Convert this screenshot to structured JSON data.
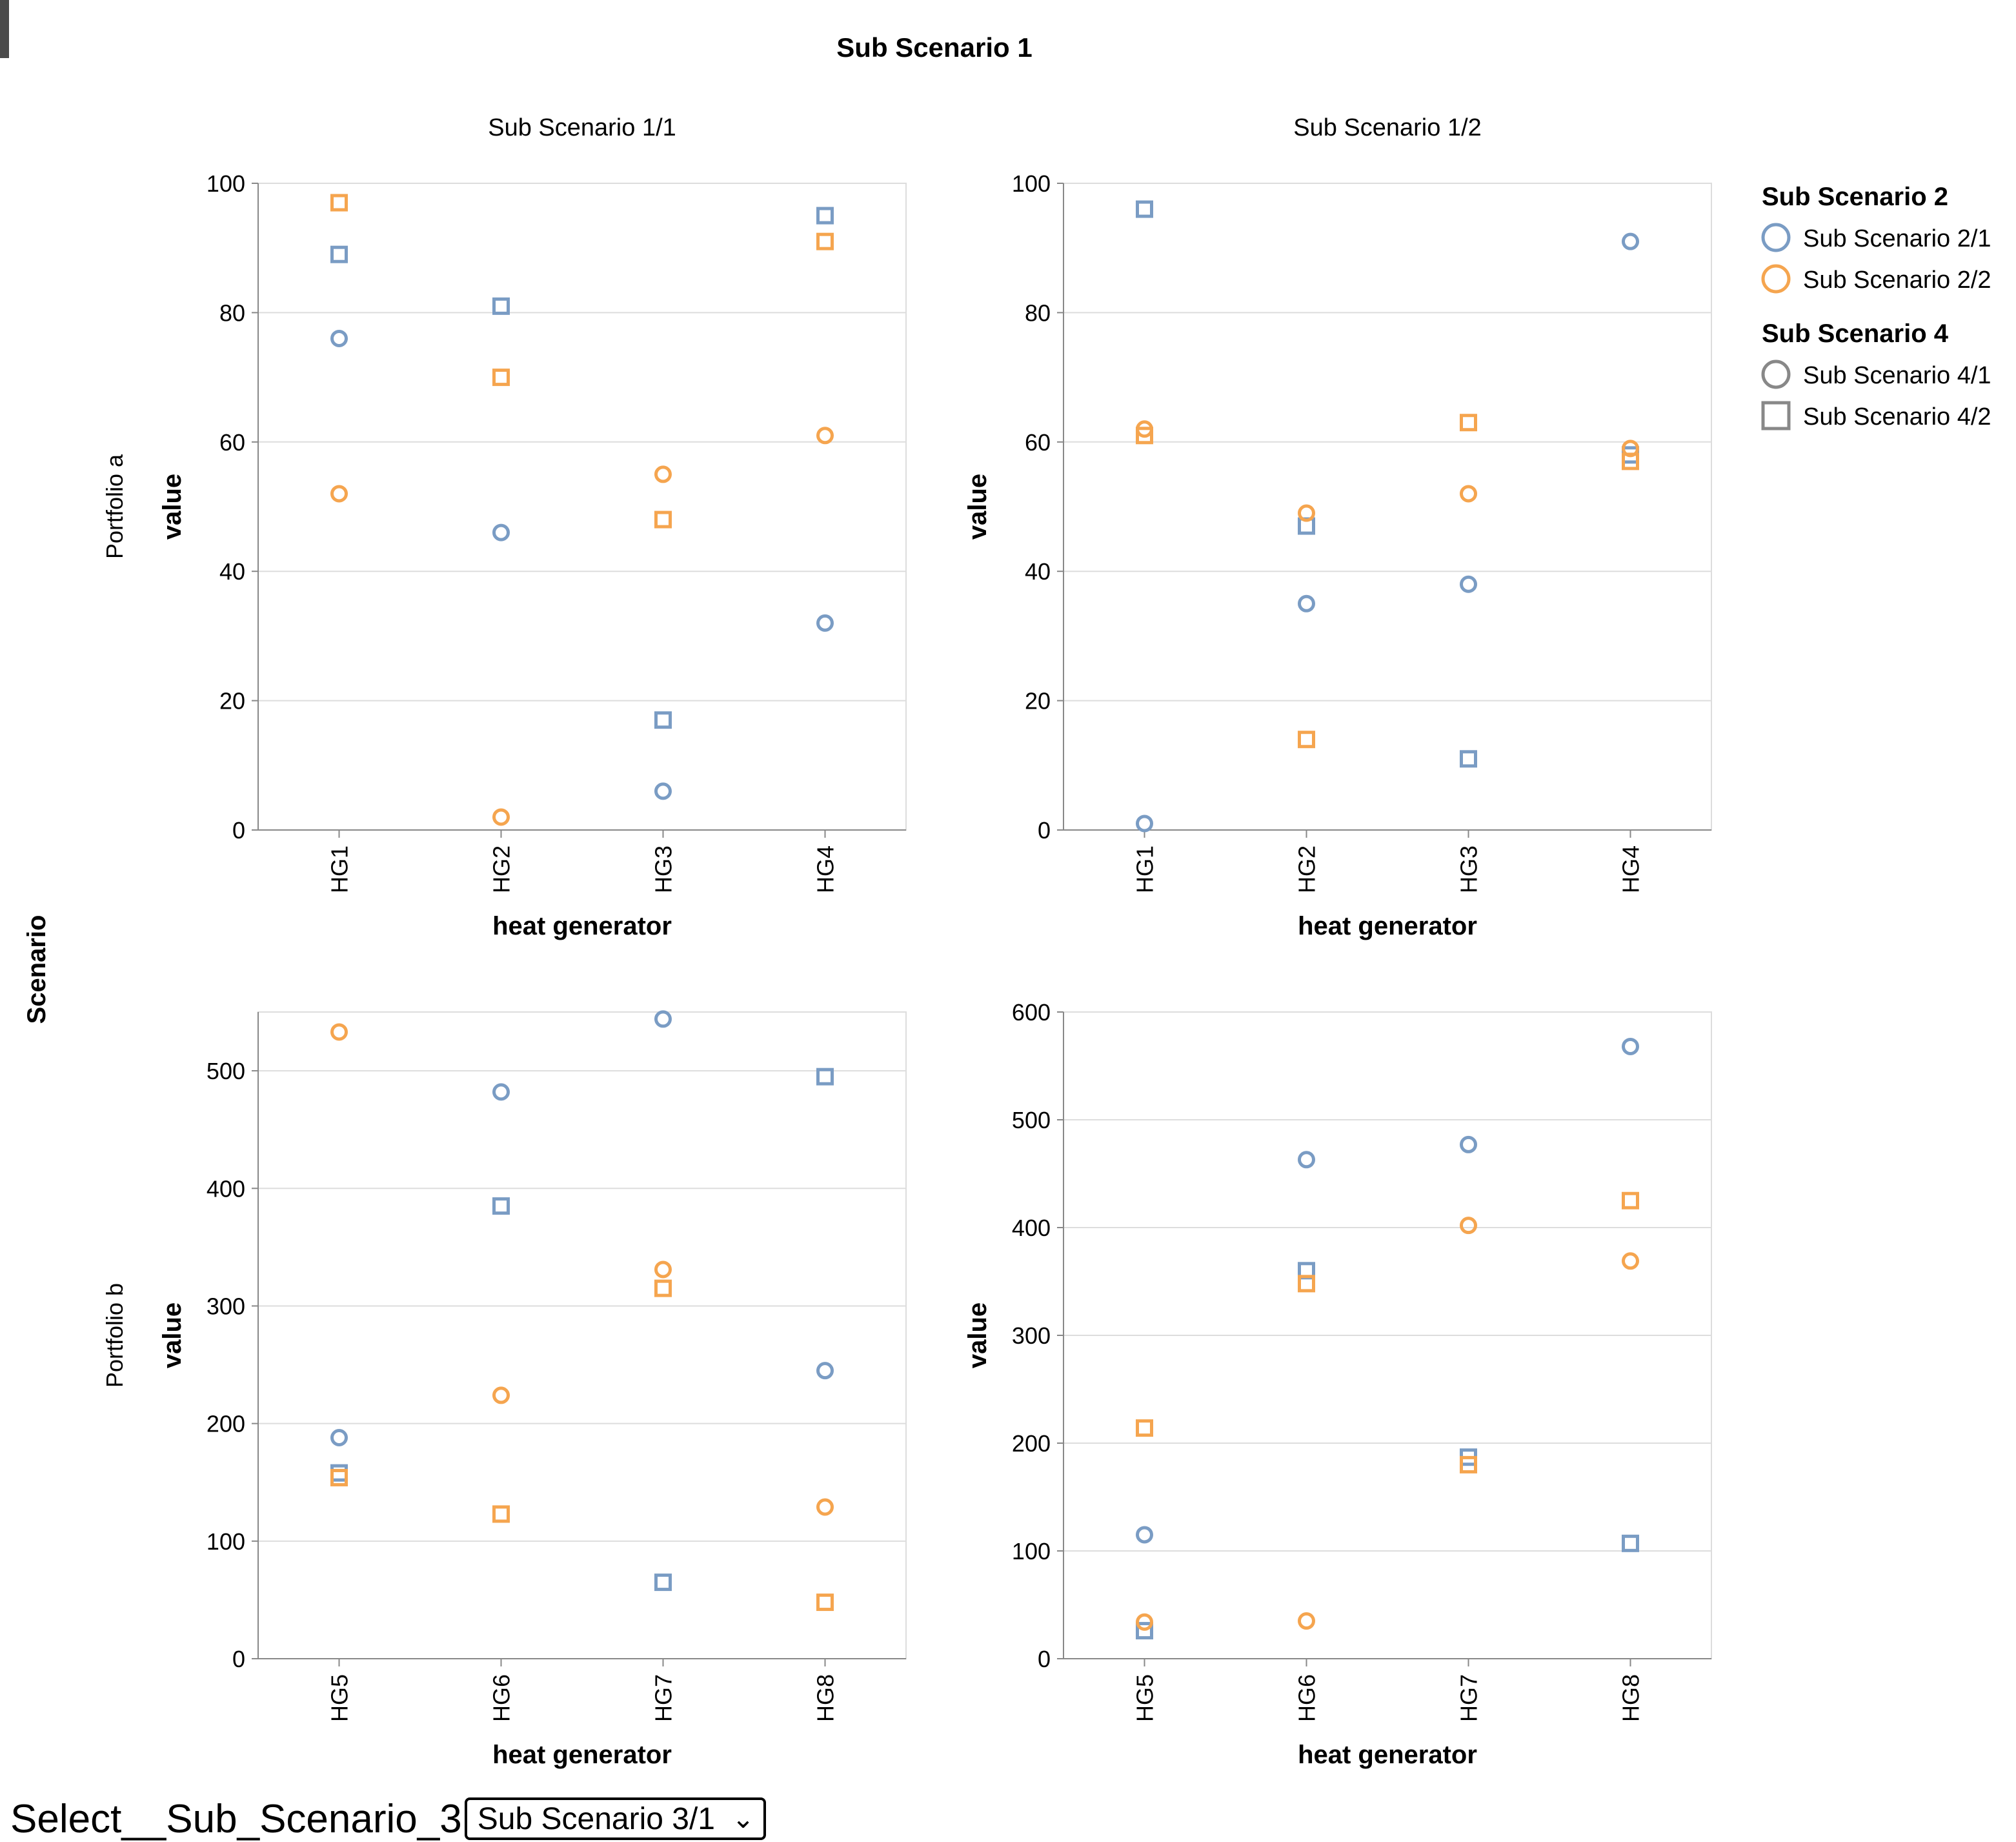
{
  "chart_data": {
    "type": "scatter",
    "title": "Sub Scenario 1",
    "row_title": "Scenario",
    "columns": [
      "Sub Scenario 1/1",
      "Sub Scenario 1/2"
    ],
    "rows": [
      "Portfolio a",
      "Portfolio b"
    ],
    "xlabel": "heat generator",
    "ylabel": "value",
    "grid": true,
    "legend_placement": "top-right",
    "legends": [
      {
        "title": "Sub Scenario 2",
        "kind": "color",
        "entries": [
          {
            "label": "Sub Scenario 2/1",
            "color": "#7a9cc4"
          },
          {
            "label": "Sub Scenario 2/2",
            "color": "#f5a54f"
          }
        ]
      },
      {
        "title": "Sub Scenario 4",
        "kind": "shape",
        "entries": [
          {
            "label": "Sub Scenario 4/1",
            "shape": "circle"
          },
          {
            "label": "Sub Scenario 4/2",
            "shape": "square"
          }
        ]
      }
    ],
    "panels": [
      {
        "row": "Portfolio a",
        "column": "Sub Scenario 1/1",
        "categories": [
          "HG1",
          "HG2",
          "HG3",
          "HG4"
        ],
        "ylim": [
          0,
          100
        ],
        "yticks": [
          0,
          20,
          40,
          60,
          80,
          100
        ],
        "series": [
          {
            "color_series": "Sub Scenario 2/1",
            "shape_series": "Sub Scenario 4/1",
            "values": [
              76,
              46,
              6,
              32
            ]
          },
          {
            "color_series": "Sub Scenario 2/1",
            "shape_series": "Sub Scenario 4/2",
            "values": [
              89,
              81,
              17,
              95
            ]
          },
          {
            "color_series": "Sub Scenario 2/2",
            "shape_series": "Sub Scenario 4/1",
            "values": [
              52,
              2,
              55,
              61
            ]
          },
          {
            "color_series": "Sub Scenario 2/2",
            "shape_series": "Sub Scenario 4/2",
            "values": [
              97,
              70,
              48,
              91
            ]
          }
        ]
      },
      {
        "row": "Portfolio a",
        "column": "Sub Scenario 1/2",
        "categories": [
          "HG1",
          "HG2",
          "HG3",
          "HG4"
        ],
        "ylim": [
          0,
          100
        ],
        "yticks": [
          0,
          20,
          40,
          60,
          80,
          100
        ],
        "series": [
          {
            "color_series": "Sub Scenario 2/1",
            "shape_series": "Sub Scenario 4/1",
            "values": [
              1,
              35,
              38,
              91
            ]
          },
          {
            "color_series": "Sub Scenario 2/1",
            "shape_series": "Sub Scenario 4/2",
            "values": [
              96,
              47,
              11,
              58
            ]
          },
          {
            "color_series": "Sub Scenario 2/2",
            "shape_series": "Sub Scenario 4/1",
            "values": [
              62,
              49,
              52,
              59
            ]
          },
          {
            "color_series": "Sub Scenario 2/2",
            "shape_series": "Sub Scenario 4/2",
            "values": [
              61,
              14,
              63,
              57
            ]
          }
        ]
      },
      {
        "row": "Portfolio b",
        "column": "Sub Scenario 1/1",
        "categories": [
          "HG5",
          "HG6",
          "HG7",
          "HG8"
        ],
        "ylim": [
          0,
          550
        ],
        "yticks": [
          0,
          100,
          200,
          300,
          400,
          500
        ],
        "series": [
          {
            "color_series": "Sub Scenario 2/1",
            "shape_series": "Sub Scenario 4/1",
            "values": [
              188,
              482,
              544,
              245
            ]
          },
          {
            "color_series": "Sub Scenario 2/1",
            "shape_series": "Sub Scenario 4/2",
            "values": [
              158,
              385,
              65,
              495
            ]
          },
          {
            "color_series": "Sub Scenario 2/2",
            "shape_series": "Sub Scenario 4/1",
            "values": [
              533,
              224,
              331,
              129
            ]
          },
          {
            "color_series": "Sub Scenario 2/2",
            "shape_series": "Sub Scenario 4/2",
            "values": [
              154,
              123,
              315,
              48
            ]
          }
        ]
      },
      {
        "row": "Portfolio b",
        "column": "Sub Scenario 1/2",
        "categories": [
          "HG5",
          "HG6",
          "HG7",
          "HG8"
        ],
        "ylim": [
          0,
          600
        ],
        "yticks": [
          0,
          100,
          200,
          300,
          400,
          500,
          600
        ],
        "series": [
          {
            "color_series": "Sub Scenario 2/1",
            "shape_series": "Sub Scenario 4/1",
            "values": [
              115,
              463,
              477,
              568
            ]
          },
          {
            "color_series": "Sub Scenario 2/1",
            "shape_series": "Sub Scenario 4/2",
            "values": [
              26,
              360,
              187,
              107
            ]
          },
          {
            "color_series": "Sub Scenario 2/2",
            "shape_series": "Sub Scenario 4/1",
            "values": [
              34,
              35,
              402,
              369
            ]
          },
          {
            "color_series": "Sub Scenario 2/2",
            "shape_series": "Sub Scenario 4/2",
            "values": [
              214,
              348,
              180,
              425
            ]
          }
        ]
      }
    ]
  },
  "control": {
    "label": "Select__Sub_Scenario_3",
    "selected": "Sub Scenario 3/1"
  },
  "colors": {
    "grid": "#dddddd",
    "axis": "#888888",
    "legend_neutral": "#888888"
  }
}
